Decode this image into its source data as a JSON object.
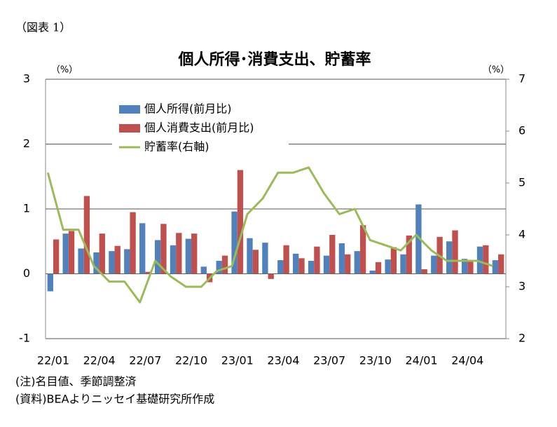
{
  "caption": "（図表 1）",
  "notes": [
    "(注)名目値、季節調整済",
    "(資料)BEAよりニッセイ基礎研究所作成"
  ],
  "chart_data": {
    "type": "bar_line",
    "title": "個人所得･消費支出、貯蓄率",
    "y_unit": "（%）",
    "y2_unit": "（%）",
    "categories": [
      "22/01",
      null,
      null,
      "22/04",
      null,
      null,
      "22/07",
      null,
      null,
      "22/10",
      null,
      null,
      "23/01",
      null,
      null,
      "23/04",
      null,
      null,
      "23/07",
      null,
      null,
      "23/10",
      null,
      null,
      "24/01",
      null,
      null,
      "24/04",
      null,
      null
    ],
    "series": [
      {
        "name": "個人所得(前月比)",
        "type": "bar",
        "color": "#4f81bd",
        "values": [
          -0.27,
          0.62,
          0.39,
          0.33,
          0.35,
          0.38,
          0.78,
          0.52,
          0.44,
          0.54,
          0.11,
          0.2,
          0.96,
          0.55,
          0.48,
          0.21,
          0.31,
          0.2,
          0.28,
          0.47,
          0.35,
          0.05,
          0.22,
          0.3,
          1.07,
          0.28,
          0.5,
          0.23,
          0.42,
          0.21
        ]
      },
      {
        "name": "個人消費支出(前月比)",
        "type": "bar",
        "color": "#c0504d",
        "values": [
          0.53,
          0.66,
          1.2,
          0.62,
          0.43,
          0.95,
          0.03,
          0.77,
          0.63,
          0.62,
          -0.13,
          0.28,
          1.6,
          0.37,
          -0.08,
          0.44,
          0.24,
          0.42,
          0.6,
          0.3,
          0.75,
          0.18,
          0.41,
          0.59,
          0.07,
          0.57,
          0.67,
          0.2,
          0.44,
          0.3
        ]
      },
      {
        "name": "貯蓄率(右軸)",
        "type": "line",
        "axis": "y2",
        "color": "#9bbb59",
        "values": [
          5.2,
          4.1,
          4.1,
          3.4,
          3.1,
          3.1,
          2.7,
          3.5,
          3.2,
          3.0,
          3.0,
          3.3,
          3.4,
          4.4,
          4.7,
          5.2,
          5.2,
          5.3,
          4.8,
          4.4,
          4.5,
          3.9,
          3.8,
          3.7,
          4.0,
          3.7,
          3.5,
          3.5,
          3.5,
          3.4
        ]
      }
    ],
    "ylim": [
      -1,
      3
    ],
    "yticks": [
      -1,
      0,
      1,
      2,
      3
    ],
    "y2lim": [
      2,
      7
    ],
    "y2ticks": [
      2,
      3,
      4,
      5,
      6,
      7
    ],
    "grid": true
  }
}
